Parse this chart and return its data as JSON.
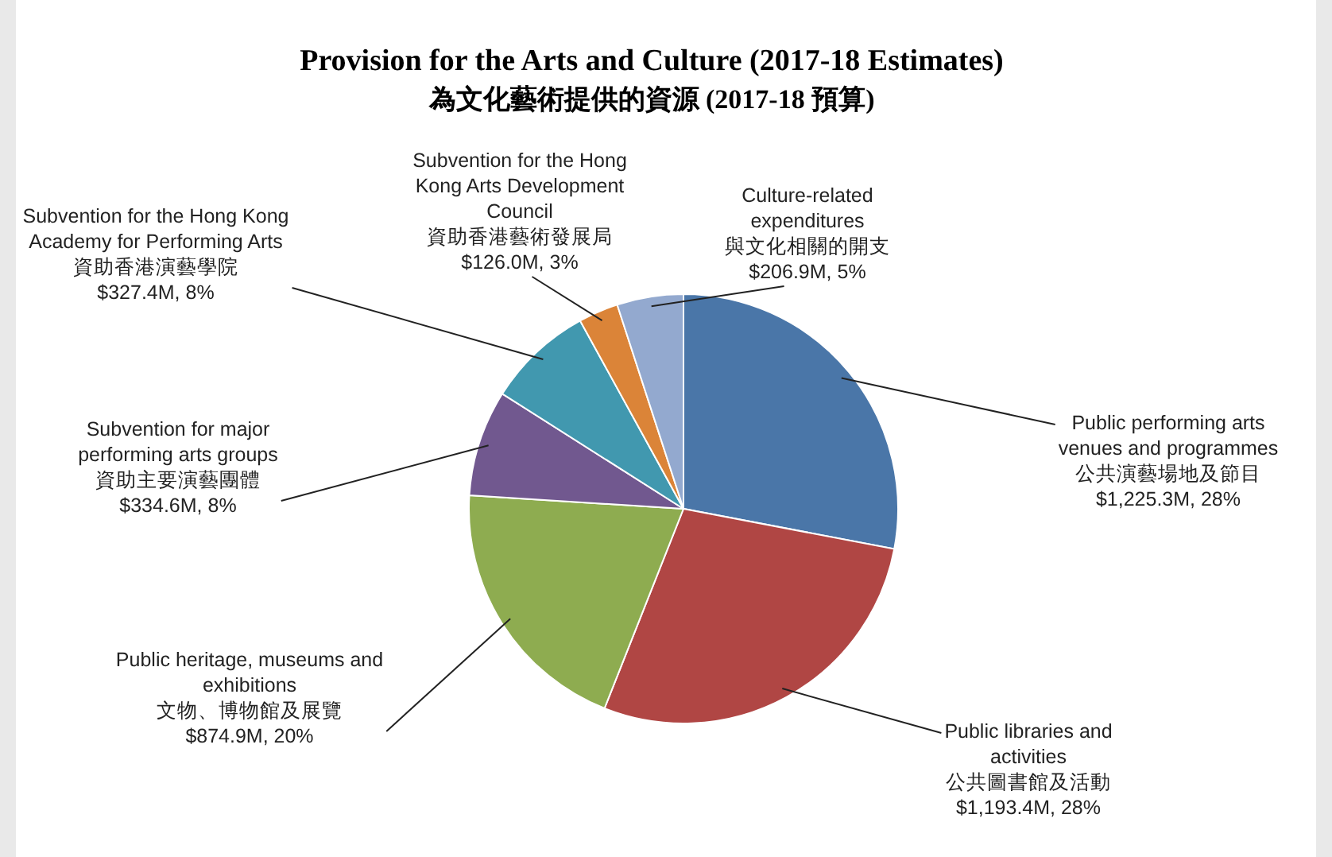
{
  "chart_data": {
    "type": "pie",
    "title": "Provision for the Arts and Culture (2017-18 Estimates)",
    "subtitle": "為文化藝術提供的資源 (2017-18 預算)",
    "categories": [
      "Public performing arts venues and programmes\n公共演藝場地及節目",
      "Public libraries and activities\n公共圖書館及活動",
      "Public heritage, museums and exhibitions\n文物、博物館及展覽",
      "Subvention for major performing arts groups\n資助主要演藝團體",
      "Subvention for the Hong Kong Academy for Performing Arts\n資助香港演藝學院",
      "Subvention for the Hong Kong Arts Development Council\n資助香港藝術發展局",
      "Culture-related expenditures\n與文化相關的開支"
    ],
    "values": [
      28,
      28,
      20,
      8,
      8,
      3,
      5
    ],
    "colors": [
      "#4a76a8",
      "#b04644",
      "#8eac50",
      "#71588f",
      "#4198af",
      "#db8438",
      "#93a9cf"
    ],
    "value_labels": [
      "$1,225.3M, 28%",
      "$1,193.4M, 28%",
      "$874.9M, 20%",
      "$334.6M, 8%",
      "$327.4M, 8%",
      "$126.0M, 3%",
      "$206.9M, 5%"
    ]
  }
}
